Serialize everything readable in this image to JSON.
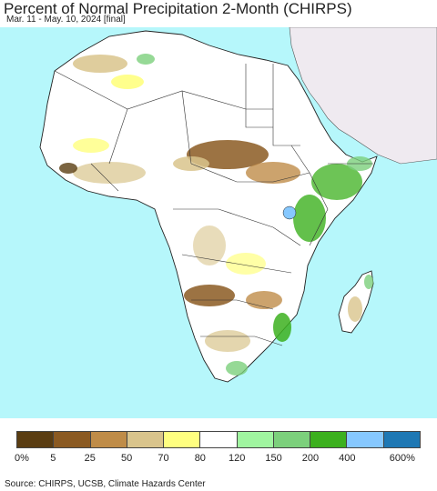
{
  "header": {
    "title": "Percent of Normal Precipitation 2-Month (CHIRPS)",
    "subtitle": "Mar. 11 - May. 10, 2024 [final]"
  },
  "map": {
    "ocean_color": "#b6f7fb",
    "land_color": "#ffffff",
    "outside_region_color": "#efeaf0"
  },
  "legend": {
    "colors": [
      "#5a3d12",
      "#8b5a22",
      "#bf8c48",
      "#d9c48c",
      "#ffff80",
      "#ffffff",
      "#a0f5a0",
      "#7cd07c",
      "#3cb01e",
      "#86c8ff",
      "#1e78b4"
    ],
    "labels": [
      "0%",
      "5",
      "25",
      "50",
      "70",
      "80",
      "120",
      "150",
      "200",
      "400",
      "600%"
    ]
  },
  "footer": {
    "source": "Source: CHIRPS, UCSB, Climate Hazards Center"
  }
}
